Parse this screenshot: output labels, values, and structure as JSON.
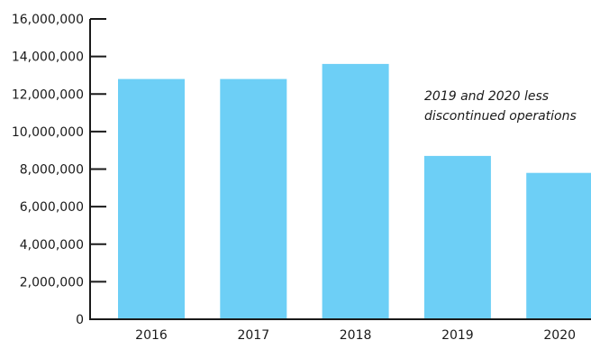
{
  "chart_data": {
    "type": "bar",
    "categories": [
      "2016",
      "2017",
      "2018",
      "2019",
      "2020"
    ],
    "values": [
      12800000,
      12800000,
      13600000,
      8700000,
      7800000
    ],
    "ylim": [
      0,
      16000000
    ],
    "yticks": [
      "0",
      "2,000,000",
      "4,000,000",
      "6,000,000",
      "8,000,000",
      "10,000,000",
      "12,000,000",
      "14,000,000",
      "16,000,000"
    ],
    "annotation": [
      "2019 and 2020 less",
      "discontinued operations"
    ],
    "bar_color": "#6dcff6",
    "axis_color": "#1a1a1a",
    "grid": false
  }
}
